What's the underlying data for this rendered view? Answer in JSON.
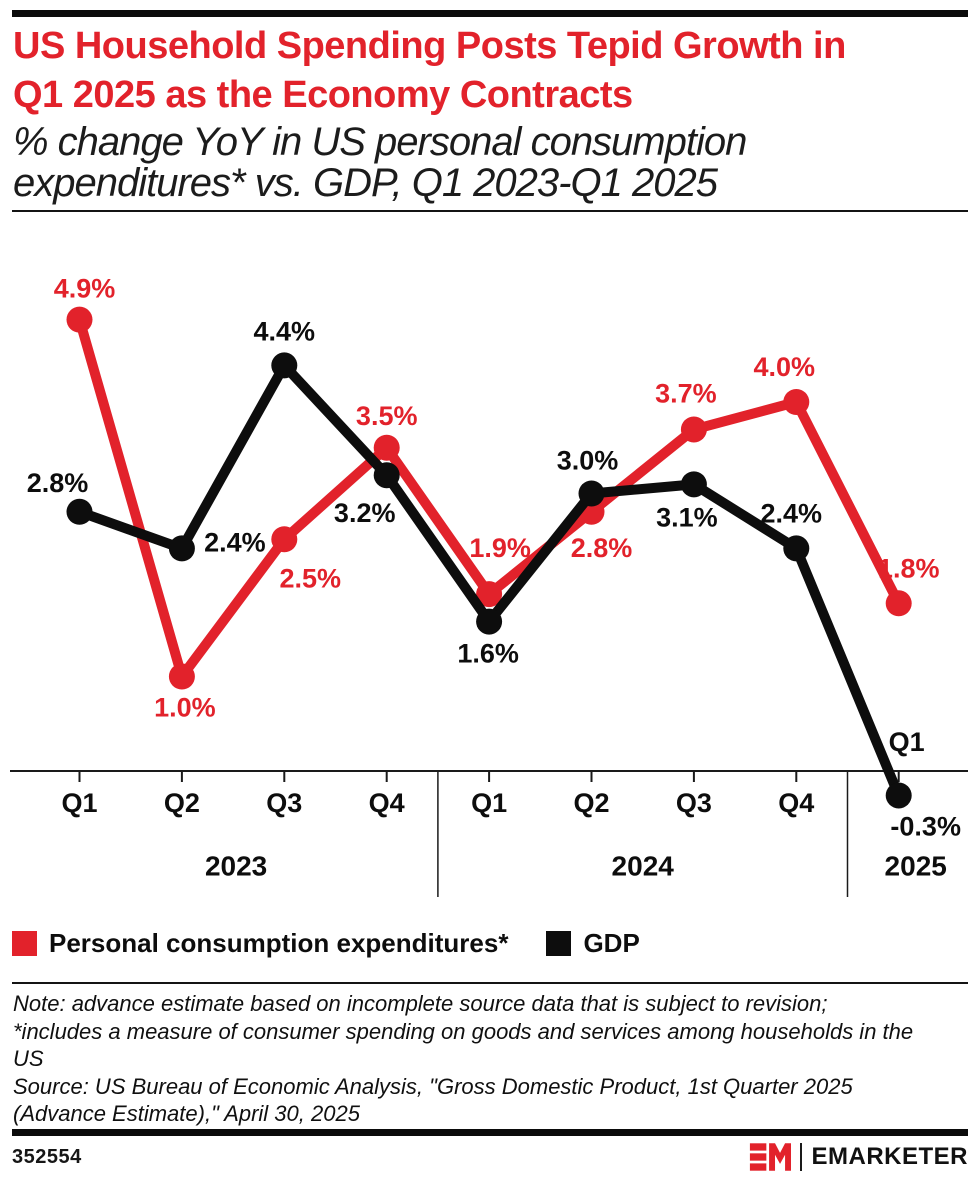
{
  "colors": {
    "accent_red": "#e2222b",
    "ink": "#0d0d0d"
  },
  "header": {
    "title_lines": [
      "US Household Spending Posts Tepid Growth in",
      "Q1 2025 as the Economy Contracts"
    ],
    "subtitle_lines": [
      "% change YoY in US personal consumption",
      "expenditures* vs. GDP, Q1 2023-Q1 2025"
    ]
  },
  "chart_data": {
    "type": "line",
    "title": "US Household Spending Posts Tepid Growth in Q1 2025 as the Economy Contracts",
    "subtitle": "% change YoY in US personal consumption expenditures* vs. GDP, Q1 2023-Q1 2025",
    "categories": [
      "Q1",
      "Q2",
      "Q3",
      "Q4",
      "Q1",
      "Q2",
      "Q3",
      "Q4",
      "Q1"
    ],
    "year_groups": [
      {
        "label": "2023",
        "span": [
          0,
          3
        ],
        "label_dx": 3
      },
      {
        "label": "2024",
        "span": [
          4,
          7
        ],
        "label_dx": 0
      },
      {
        "label": "2025",
        "span": [
          8,
          8
        ],
        "label_dx": 17
      }
    ],
    "series": [
      {
        "name": "Personal consumption expenditures*",
        "color": "#e2222b",
        "values": [
          4.9,
          1.0,
          2.5,
          3.5,
          1.9,
          2.8,
          3.7,
          4.0,
          1.8
        ],
        "label_offsets": [
          [
            5,
            -31
          ],
          [
            3,
            31
          ],
          [
            26,
            39
          ],
          [
            0,
            -32
          ],
          [
            11,
            -46
          ],
          [
            10,
            36
          ],
          [
            -8,
            -36
          ],
          [
            -12,
            -35
          ],
          [
            10,
            -35
          ]
        ]
      },
      {
        "name": "GDP",
        "color": "#0d0d0d",
        "values": [
          2.8,
          2.4,
          4.4,
          3.2,
          1.6,
          3.0,
          3.1,
          2.4,
          -0.3
        ],
        "label_offsets": [
          [
            -22,
            -29
          ],
          [
            53,
            -6
          ],
          [
            0,
            -34
          ],
          [
            -22,
            38
          ],
          [
            -1,
            32
          ],
          [
            -4,
            -33
          ],
          [
            -7,
            33
          ],
          [
            -5,
            -35
          ],
          [
            27,
            31
          ]
        ]
      }
    ],
    "value_suffix": "%",
    "value_decimals": 1,
    "ylim": [
      -0.5,
      5.2
    ],
    "grid": false,
    "legend_position": "below-chart-left",
    "axis": {
      "baseline_value": 0
    },
    "special_category": {
      "index": 8,
      "dx": 8,
      "y": 742
    }
  },
  "legend": {
    "items": [
      {
        "label": "Personal consumption expenditures*",
        "color": "#e2222b"
      },
      {
        "label": "GDP",
        "color": "#0d0d0d"
      }
    ]
  },
  "footnote": {
    "note_lines": [
      "Note: advance estimate based on incomplete source data that is subject to revision;",
      "*includes a measure of consumer spending on goods and services among households in the",
      "US"
    ],
    "source_lines": [
      "Source: US Bureau of Economic Analysis, \"Gross Domestic Product, 1st Quarter 2025",
      "(Advance Estimate),\" April 30, 2025"
    ]
  },
  "footer": {
    "chart_id": "352554",
    "brand": "EMARKETER",
    "logo_monogram": "EM"
  }
}
